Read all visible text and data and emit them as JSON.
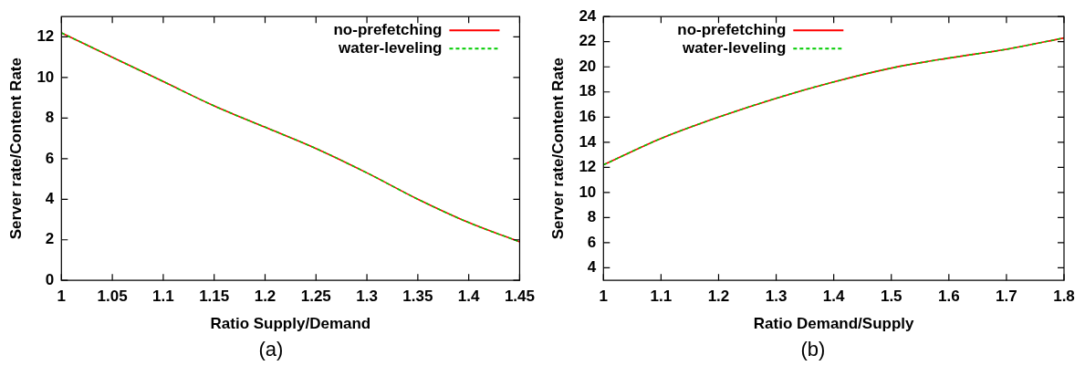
{
  "chart_data": [
    {
      "type": "line",
      "xlabel": "Ratio Supply/Demand",
      "ylabel": "Server rate/Content Rate",
      "annotations": [
        "(a)"
      ],
      "x": [
        1,
        1.05,
        1.1,
        1.15,
        1.2,
        1.25,
        1.3,
        1.35,
        1.4,
        1.45
      ],
      "series": [
        {
          "name": "no-prefetching",
          "color": "#ff0000",
          "line_style": "solid",
          "values": [
            12.2,
            11.0,
            9.8,
            8.6,
            7.55,
            6.5,
            5.3,
            4.0,
            2.85,
            1.9
          ]
        },
        {
          "name": "water-leveling",
          "color": "#00cc00",
          "line_style": "dashed",
          "values": [
            12.2,
            11.0,
            9.8,
            8.6,
            7.55,
            6.5,
            5.3,
            4.0,
            2.85,
            1.9
          ]
        }
      ],
      "xlim": [
        1,
        1.45
      ],
      "xticks": [
        1,
        1.05,
        1.1,
        1.15,
        1.2,
        1.25,
        1.3,
        1.35,
        1.4,
        1.45
      ],
      "ylim": [
        0,
        13
      ],
      "yticks": [
        0,
        2,
        4,
        6,
        8,
        10,
        12
      ],
      "grid": false,
      "legend": "top right",
      "marker": "none"
    },
    {
      "type": "line",
      "xlabel": "Ratio Demand/Supply",
      "ylabel": "Server rate/Content Rate",
      "annotations": [
        "(b)"
      ],
      "x": [
        1,
        1.1,
        1.2,
        1.3,
        1.4,
        1.5,
        1.6,
        1.7,
        1.8
      ],
      "series": [
        {
          "name": "no-prefetching",
          "color": "#ff0000",
          "line_style": "solid",
          "values": [
            12.2,
            14.3,
            16.0,
            17.5,
            18.8,
            19.9,
            20.7,
            21.4,
            22.3
          ]
        },
        {
          "name": "water-leveling",
          "color": "#00cc00",
          "line_style": "dashed",
          "values": [
            12.2,
            14.3,
            16.0,
            17.5,
            18.8,
            19.9,
            20.7,
            21.4,
            22.3
          ]
        }
      ],
      "xlim": [
        1,
        1.8
      ],
      "xticks": [
        1,
        1.1,
        1.2,
        1.3,
        1.4,
        1.5,
        1.6,
        1.7,
        1.8
      ],
      "ylim": [
        3,
        24
      ],
      "yticks": [
        4,
        6,
        8,
        10,
        12,
        14,
        16,
        18,
        20,
        22,
        24
      ],
      "grid": false,
      "legend": "top left",
      "marker": "none"
    }
  ]
}
